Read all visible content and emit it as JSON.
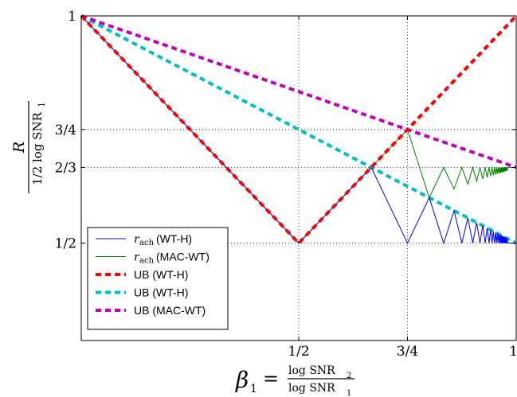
{
  "chart_data": {
    "type": "line",
    "xlim": [
      0,
      1
    ],
    "ylim": [
      0.2857,
      1.0
    ],
    "x_ticks": [
      {
        "value": 0.5,
        "label": "1/2"
      },
      {
        "value": 0.75,
        "label": "3/4"
      },
      {
        "value": 1.0,
        "label": "1"
      }
    ],
    "y_ticks": [
      {
        "value": 0.5,
        "label": "1/2"
      },
      {
        "value": 0.6667,
        "label": "2/3"
      },
      {
        "value": 0.75,
        "label": "3/4"
      },
      {
        "value": 1.0,
        "label": "1"
      }
    ],
    "grid": "dotted at ticks",
    "legend_position": "lower-left",
    "xlabel": {
      "beta": "β",
      "sub": "1",
      "num": "log SNR",
      "num_sub": "2",
      "den": "log SNR",
      "den_sub": "1"
    },
    "ylabel": {
      "num": "R",
      "den": "1/2 log SNR",
      "den_sub": "1"
    },
    "series": [
      {
        "name_math": "r",
        "name_sub": "ach",
        "name_text": "(WT-H)",
        "color": "#0000ff",
        "style": "solid",
        "x": [
          0,
          0.5,
          0.6667,
          0.75,
          0.8,
          0.8333,
          0.8571,
          0.875,
          0.8889,
          0.9,
          0.9091,
          0.9167,
          0.9231,
          0.9286,
          0.9333,
          0.9375,
          0.9412,
          0.9444,
          0.9474,
          0.95,
          0.9524,
          0.9545,
          0.9565,
          0.9583,
          0.96,
          0.9615,
          0.963,
          0.9643,
          0.9655,
          0.9667,
          0.9677,
          0.9688,
          0.9697,
          0.9706,
          0.9714,
          0.9722,
          0.973,
          0.9737,
          0.9744,
          0.975,
          0.9756,
          0.9762,
          0.9767,
          0.9773,
          0.9778,
          0.9783,
          0.9787,
          0.9792,
          0.9796,
          0.98,
          1.0
        ],
        "y": [
          1,
          0.5,
          0.6667,
          0.5,
          0.6,
          0.5,
          0.5714,
          0.5,
          0.5556,
          0.5,
          0.5455,
          0.5,
          0.5385,
          0.5,
          0.5333,
          0.5,
          0.5294,
          0.5,
          0.5263,
          0.5,
          0.5238,
          0.5,
          0.5217,
          0.5,
          0.52,
          0.5,
          0.5185,
          0.5,
          0.5172,
          0.5,
          0.5161,
          0.5,
          0.5152,
          0.5,
          0.5143,
          0.5,
          0.5135,
          0.5,
          0.5128,
          0.5,
          0.5122,
          0.5,
          0.5116,
          0.5,
          0.5111,
          0.5,
          0.5106,
          0.5,
          0.5102,
          0.5,
          0.5
        ]
      },
      {
        "name_math": "r",
        "name_sub": "ach",
        "name_text": "(MAC-WT)",
        "color": "#008000",
        "style": "solid",
        "x": [
          0,
          0.5,
          0.75,
          0.8,
          0.8333,
          0.8571,
          0.875,
          0.8889,
          0.9,
          0.9091,
          0.9167,
          0.9231,
          0.9286,
          0.9333,
          0.9375,
          0.9412,
          0.9444,
          0.9474,
          0.95,
          0.9524,
          0.9545,
          0.9565,
          0.9583,
          0.96,
          0.9615,
          0.963,
          0.9643,
          0.9655,
          0.9667,
          0.9677,
          0.9688,
          0.9697,
          0.9706,
          0.9714,
          0.9722,
          0.973,
          0.9737,
          0.9744,
          0.975,
          0.9756,
          0.9762,
          0.9767,
          0.9773,
          0.9778,
          0.9783,
          0.9787,
          0.9792,
          0.9796,
          0.98,
          1.0
        ],
        "y": [
          1,
          0.5,
          0.75,
          0.6,
          0.6667,
          0.619,
          0.6667,
          0.6296,
          0.6667,
          0.6364,
          0.6667,
          0.641,
          0.6667,
          0.6444,
          0.6667,
          0.6471,
          0.6667,
          0.6491,
          0.6667,
          0.6508,
          0.6667,
          0.6522,
          0.6667,
          0.6533,
          0.6667,
          0.6543,
          0.6667,
          0.6552,
          0.6667,
          0.6559,
          0.6667,
          0.6566,
          0.6667,
          0.6571,
          0.6667,
          0.6577,
          0.6667,
          0.6581,
          0.6667,
          0.6585,
          0.6667,
          0.6589,
          0.6667,
          0.6593,
          0.6667,
          0.6596,
          0.6667,
          0.6599,
          0.6667,
          0.6667
        ]
      },
      {
        "name_text": "UB (WT-H)",
        "color": "#ff0000",
        "style": "dashed",
        "x": [
          0,
          0.5,
          1.0
        ],
        "y": [
          1,
          0.5,
          1.0
        ]
      },
      {
        "name_text": "UB (WT-H)",
        "color": "#00bfbf",
        "style": "dashed",
        "x": [
          0,
          1.0
        ],
        "y": [
          1,
          0.5
        ]
      },
      {
        "name_text": "UB (MAC-WT)",
        "color": "#bf00bf",
        "style": "dashed",
        "x": [
          0,
          1.0
        ],
        "y": [
          1,
          0.6667
        ]
      }
    ]
  }
}
